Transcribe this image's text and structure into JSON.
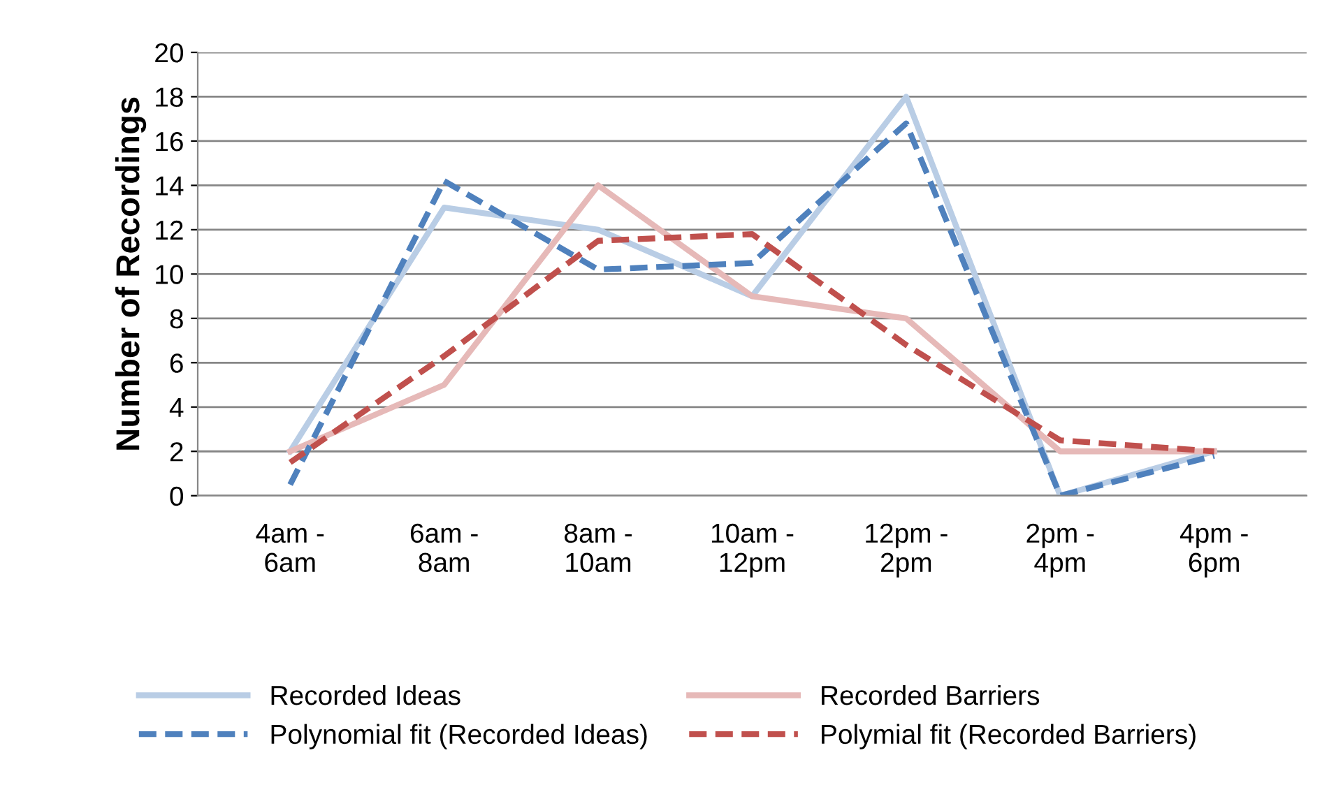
{
  "chart_data": {
    "type": "line",
    "ylabel": "Number of Recordings",
    "categories": [
      "4am -\n6am",
      "6am -\n8am",
      "8am -\n10am",
      "10am -\n12pm",
      "12pm -\n2pm",
      "2pm -\n4pm",
      "4pm -\n6pm"
    ],
    "series": [
      {
        "name": "Recorded Ideas",
        "color": "#b9cde5",
        "line_style": "solid",
        "values": [
          2,
          13,
          12,
          9,
          18,
          0,
          2
        ]
      },
      {
        "name": "Recorded Barriers",
        "color": "#e6b9b8",
        "line_style": "solid",
        "values": [
          2,
          5,
          14,
          9,
          8,
          2,
          2
        ]
      },
      {
        "name": "Polynomial fit (Recorded Ideas)",
        "color": "#4f81bd",
        "line_style": "dashed",
        "values": [
          0.5,
          14.2,
          10.2,
          10.5,
          16.8,
          0,
          1.8
        ]
      },
      {
        "name": "Polymial fit (Recorded Barriers)",
        "color": "#c0504d",
        "line_style": "dashed",
        "values": [
          1.5,
          6.3,
          11.5,
          11.8,
          6.8,
          2.5,
          2.0
        ]
      }
    ],
    "ylim": [
      0,
      20
    ],
    "yticks": [
      0,
      2,
      4,
      6,
      8,
      10,
      12,
      14,
      16,
      18,
      20
    ],
    "grid": "y",
    "legend": "bottom",
    "marker": "none"
  }
}
